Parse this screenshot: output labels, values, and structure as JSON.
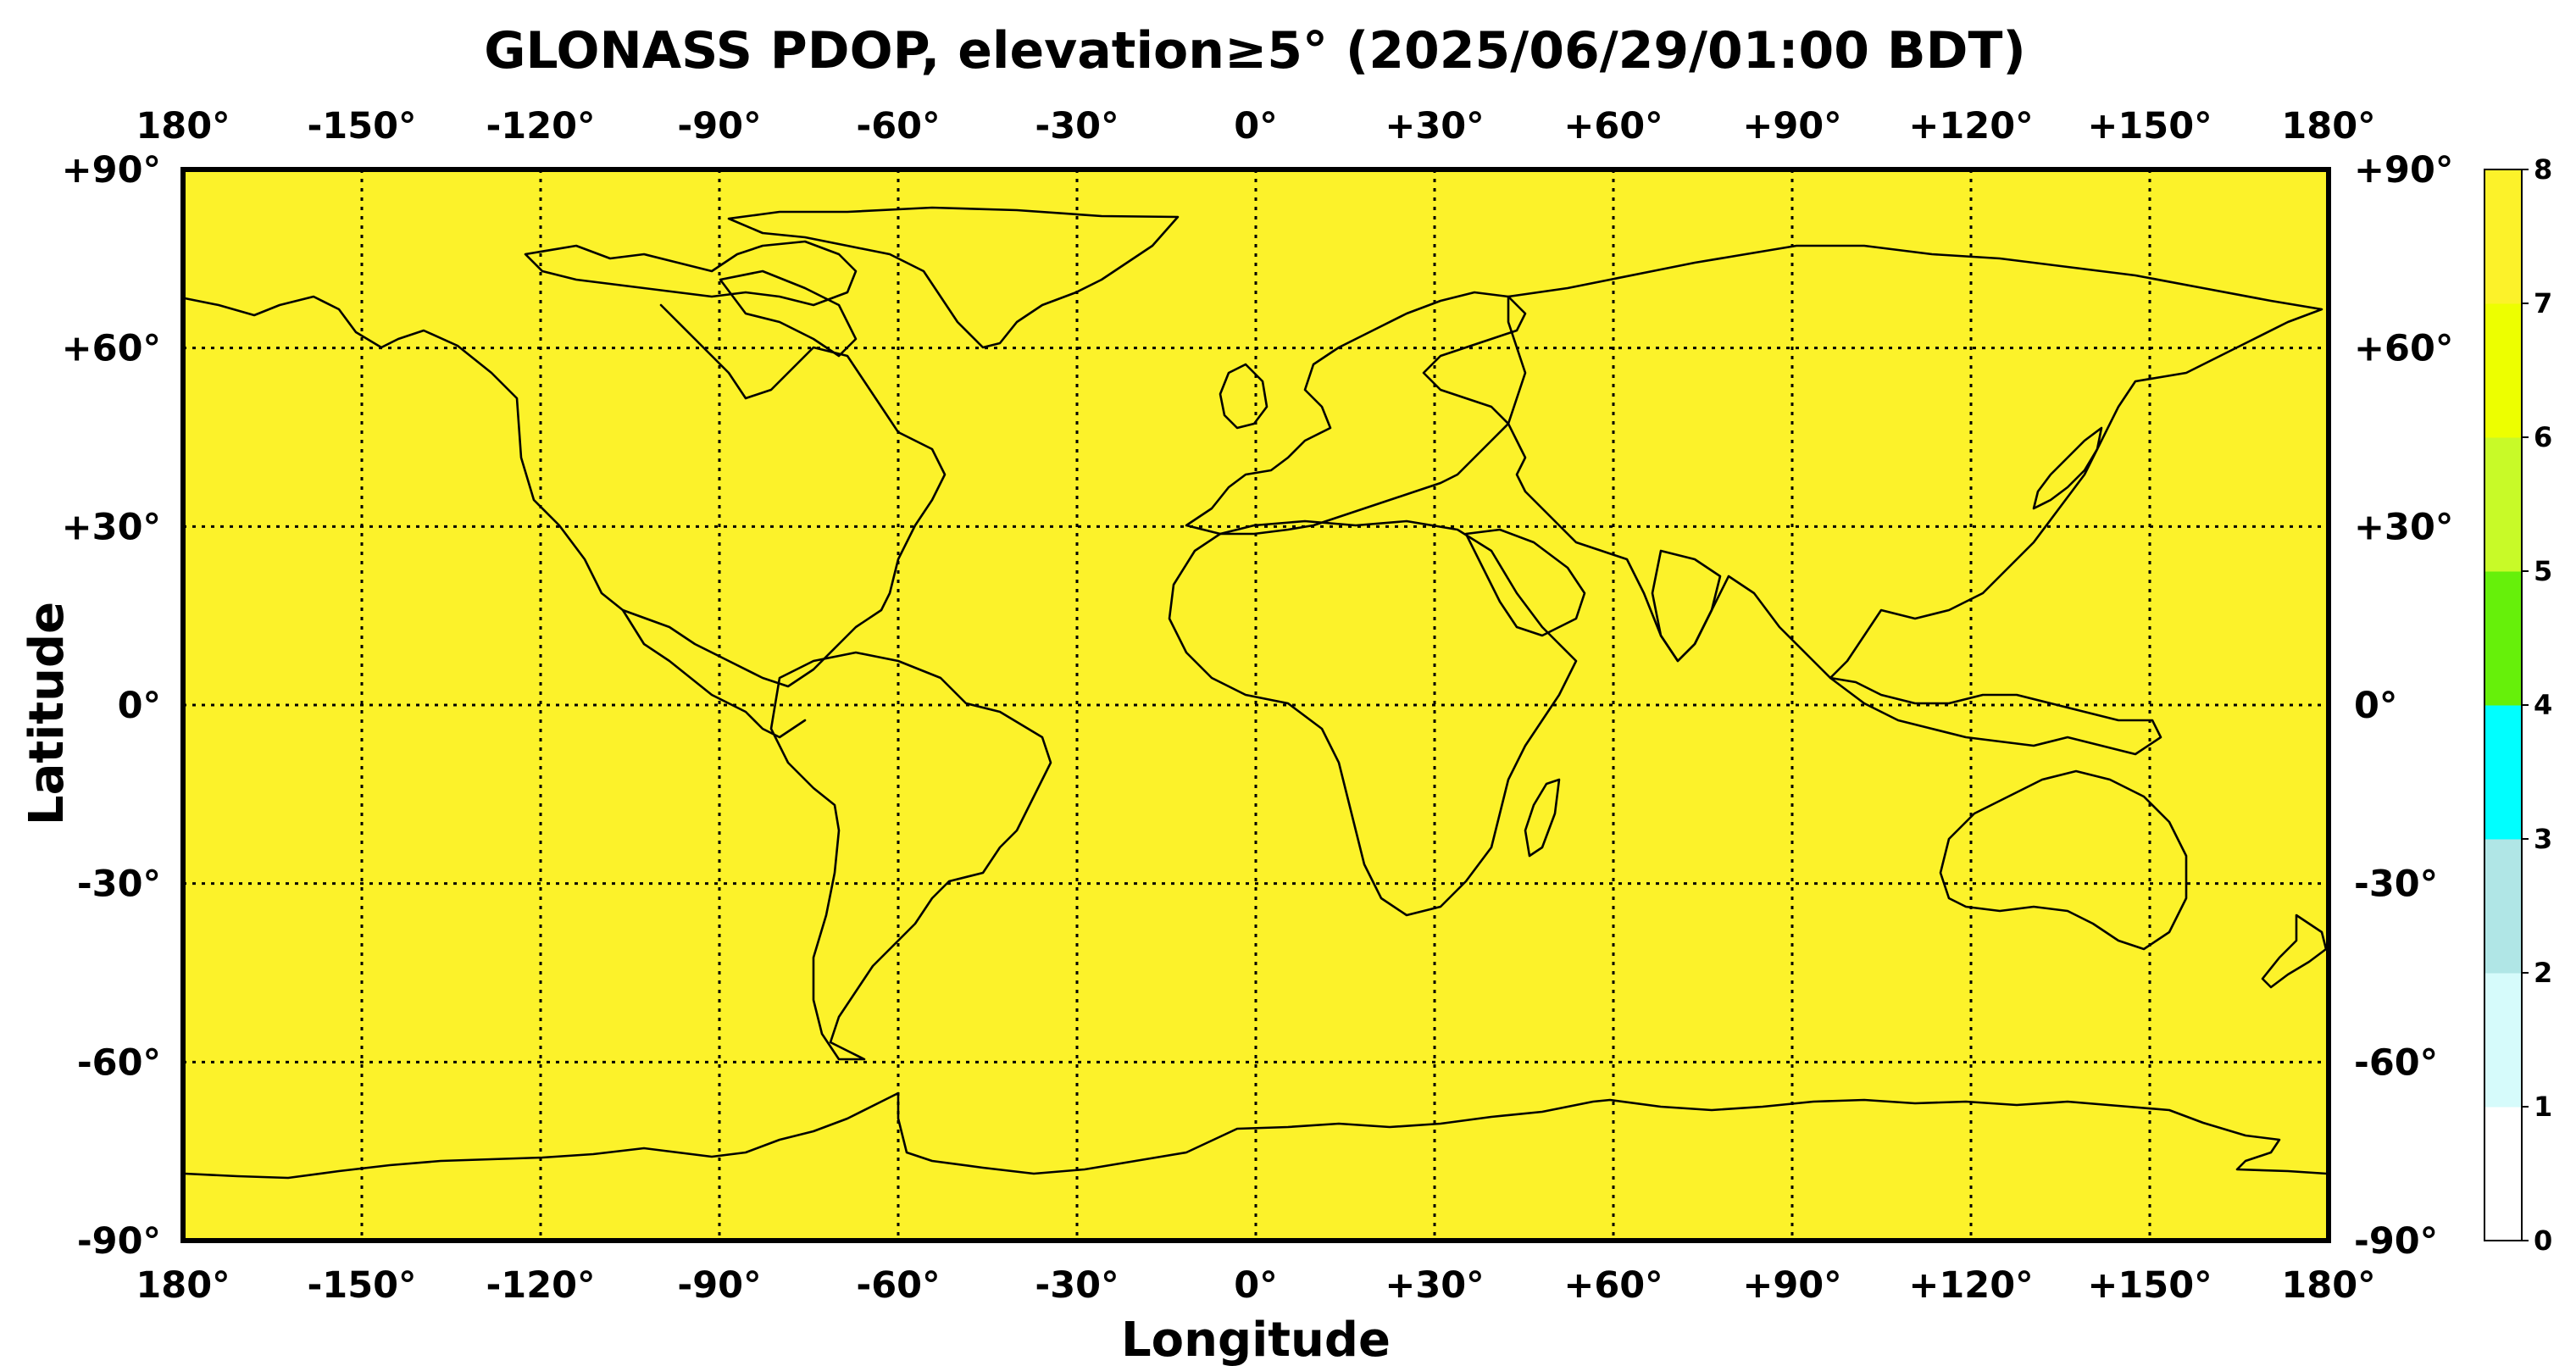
{
  "title": "GLONASS PDOP, elevation≥5° (2025/06/29/01:00 BDT)",
  "xlabel": "Longitude",
  "ylabel": "Latitude",
  "lon_ticks": [
    "180°",
    "-150°",
    "-120°",
    "-90°",
    "-60°",
    "-30°",
    "0°",
    "+30°",
    "+60°",
    "+90°",
    "+120°",
    "+150°",
    "180°"
  ],
  "lat_ticks": [
    "+90°",
    "+60°",
    "+30°",
    "0°",
    "-30°",
    "-60°",
    "-90°"
  ],
  "map_fill_color": "#fcf22a",
  "pdop_value": 8,
  "colorbar": {
    "levels": [
      {
        "value": "0",
        "color": "#ffffff"
      },
      {
        "value": "1",
        "color": "#d6fbfb"
      },
      {
        "value": "2",
        "color": "#b0e6e6"
      },
      {
        "value": "3",
        "color": "#00ffff"
      },
      {
        "value": "4",
        "color": "#66f00a"
      },
      {
        "value": "5",
        "color": "#c8fa28"
      },
      {
        "value": "6",
        "color": "#edff00"
      },
      {
        "value": "7",
        "color": "#fcf22a"
      }
    ],
    "tick_labels": [
      "0",
      "1",
      "2",
      "3",
      "4",
      "5",
      "6",
      "7",
      "8"
    ]
  },
  "chart_data": {
    "type": "heatmap",
    "title": "GLONASS PDOP, elevation≥5° (2025/06/29/01:00 BDT)",
    "xlabel": "Longitude",
    "ylabel": "Latitude",
    "xlim": [
      -180,
      180
    ],
    "ylim": [
      -90,
      90
    ],
    "grid": true,
    "colorbar_range": [
      0,
      8
    ],
    "field_value_everywhere": "≥ 8"
  }
}
